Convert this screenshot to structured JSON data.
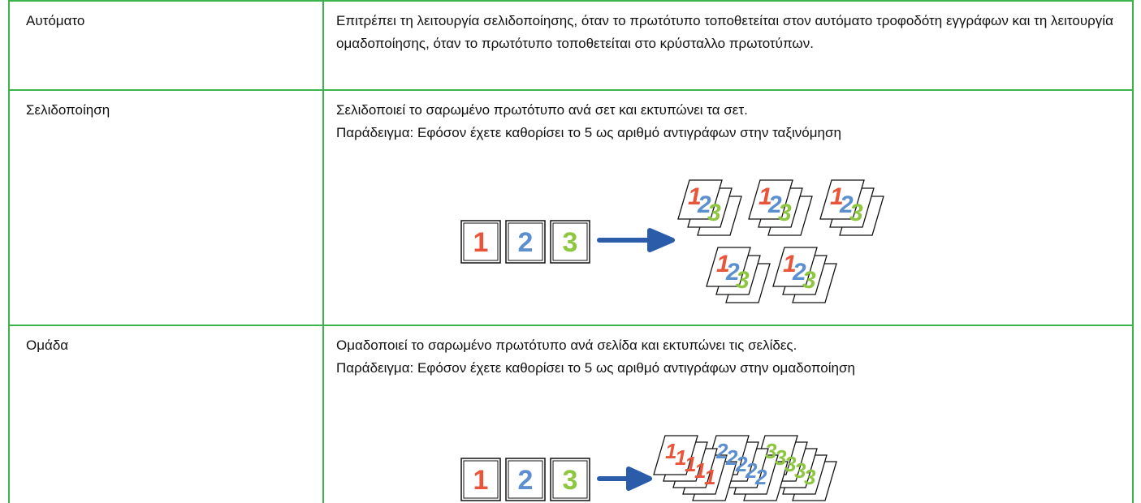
{
  "rows": [
    {
      "mode": "Αυτόματο",
      "description": [
        "Επιτρέπει τη λειτουργία σελιδοποίησης, όταν το πρωτότυπο τοποθετείται στον αυτόματο τροφοδότη εγγράφων και τη λειτουργία ομαδοποίησης, όταν το πρωτότυπο τοποθετείται στο κρύσταλλο πρωτοτύπων."
      ]
    },
    {
      "mode": "Σελιδοποίηση",
      "description": [
        "Σελιδοποιεί το σαρωμένο πρωτότυπο ανά σετ και εκτυπώνει τα σετ.",
        "Παράδειγμα: Εφόσον έχετε καθορίσει το 5 ως αριθμό αντιγράφων στην ταξινόμηση"
      ],
      "illustration": {
        "originals": [
          "1",
          "2",
          "3"
        ]
      }
    },
    {
      "mode": "Ομάδα",
      "description": [
        "Ομαδοποιεί το σαρωμένο πρωτότυπο ανά σελίδα και εκτυπώνει τις σελίδες.",
        "Παράδειγμα: Εφόσον έχετε καθορίσει το 5 ως αριθμό αντιγράφων στην ομαδοποίηση"
      ],
      "illustration": {
        "originals": [
          "1",
          "2",
          "3"
        ]
      }
    }
  ]
}
